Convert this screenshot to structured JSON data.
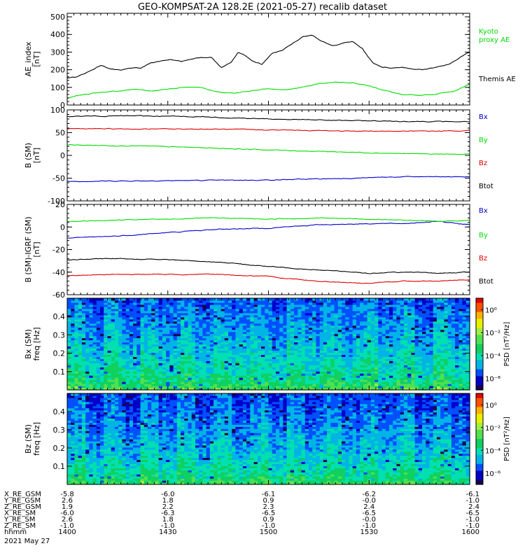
{
  "title": "GEO-KOMPSAT-2A 128.2E (2021-05-27) recalib dataset",
  "colors": {
    "black": "#000000",
    "green": "#00dd00",
    "red": "#dd0000",
    "blue": "#0000cc"
  },
  "chart_data": [
    {
      "type": "line",
      "panel": "ae",
      "ylabel": [
        "AE_index",
        "[nT]"
      ],
      "ylim": [
        0,
        520
      ],
      "yticks": [
        0,
        100,
        200,
        300,
        400,
        500
      ],
      "xlim": [
        0,
        120
      ],
      "series": [
        {
          "name": "Kyoto proxy AE",
          "name_lines": [
            "Kyoto",
            "proxy AE"
          ],
          "color": "#00dd00",
          "x": [
            0,
            5,
            10,
            15,
            20,
            25,
            30,
            35,
            40,
            45,
            50,
            55,
            60,
            65,
            70,
            75,
            80,
            85,
            90,
            95,
            100,
            105,
            110,
            115,
            120
          ],
          "values": [
            38,
            60,
            72,
            78,
            90,
            80,
            90,
            102,
            100,
            72,
            65,
            82,
            92,
            85,
            100,
            122,
            130,
            128,
            108,
            82,
            56,
            55,
            62,
            78,
            115
          ]
        },
        {
          "name": "Themis AE",
          "name_lines": [
            "Themis AE"
          ],
          "color": "#000000",
          "x": [
            0,
            3,
            7,
            10,
            13,
            16,
            19,
            22,
            25,
            28,
            31,
            34,
            37,
            40,
            43,
            46,
            49,
            51,
            53,
            55,
            58,
            61,
            64,
            67,
            70,
            73,
            76,
            79,
            82,
            85,
            88,
            91,
            94,
            97,
            100,
            103,
            106,
            110,
            114,
            117,
            120
          ],
          "values": [
            155,
            160,
            195,
            225,
            205,
            195,
            210,
            208,
            240,
            250,
            260,
            245,
            262,
            270,
            270,
            215,
            245,
            300,
            280,
            250,
            230,
            290,
            310,
            345,
            385,
            400,
            360,
            335,
            350,
            360,
            320,
            240,
            215,
            210,
            215,
            205,
            200,
            215,
            230,
            270,
            300
          ]
        }
      ]
    },
    {
      "type": "line",
      "panel": "b_sm",
      "ylabel": [
        "B (SM)",
        "[nT]"
      ],
      "ylim": [
        -100,
        100
      ],
      "yticks": [
        -100,
        -50,
        0,
        50,
        100
      ],
      "xlim": [
        0,
        120
      ],
      "series": [
        {
          "name": "Bx",
          "color": "#0000cc",
          "x": [
            0,
            20,
            40,
            60,
            80,
            100,
            120
          ],
          "values": [
            -57,
            -56,
            -55,
            -54,
            -51,
            -47,
            -47
          ]
        },
        {
          "name": "By",
          "color": "#00dd00",
          "x": [
            0,
            20,
            40,
            60,
            80,
            100,
            120
          ],
          "values": [
            23,
            21,
            17,
            12,
            8,
            4,
            2
          ]
        },
        {
          "name": "Bz",
          "color": "#dd0000",
          "x": [
            0,
            20,
            40,
            60,
            80,
            100,
            120
          ],
          "values": [
            59,
            58,
            58,
            56,
            54,
            53,
            54
          ]
        },
        {
          "name": "Btot",
          "color": "#000000",
          "x": [
            0,
            20,
            40,
            60,
            80,
            100,
            120
          ],
          "values": [
            86,
            87,
            85,
            80,
            77,
            75,
            74
          ]
        }
      ]
    },
    {
      "type": "line",
      "panel": "b_sm_igrf",
      "ylabel": [
        "B (SM)-IGRF (SM)",
        "[nT]"
      ],
      "ylim": [
        -60,
        20
      ],
      "yticks": [
        -60,
        -40,
        -20,
        0,
        20
      ],
      "xlim": [
        0,
        120
      ],
      "series": [
        {
          "name": "Bx",
          "color": "#0000cc",
          "x": [
            0,
            15,
            30,
            45,
            60,
            75,
            90,
            100,
            110,
            120
          ],
          "values": [
            -10,
            -8,
            -5,
            -2,
            -1,
            2,
            3,
            3,
            5,
            2
          ]
        },
        {
          "name": "By",
          "color": "#00dd00",
          "x": [
            0,
            15,
            30,
            45,
            60,
            75,
            90,
            100,
            110,
            120
          ],
          "values": [
            5,
            6,
            7,
            8,
            7,
            8,
            7,
            6,
            5,
            6
          ]
        },
        {
          "name": "Bz",
          "color": "#dd0000",
          "x": [
            0,
            15,
            30,
            45,
            60,
            75,
            90,
            100,
            110,
            120
          ],
          "values": [
            -43,
            -42,
            -42,
            -42,
            -44,
            -48,
            -50,
            -48,
            -48,
            -47
          ]
        },
        {
          "name": "Btot",
          "color": "#000000",
          "x": [
            0,
            15,
            30,
            45,
            60,
            75,
            90,
            100,
            110,
            120
          ],
          "values": [
            -29,
            -28,
            -29,
            -31,
            -35,
            -38,
            -41,
            -40,
            -41,
            -40
          ]
        }
      ]
    },
    {
      "type": "heatmap",
      "panel": "bx_spec",
      "ylabel": [
        "Bx (SM)",
        "freq [Hz]"
      ],
      "yticks": [
        0.1,
        0.2,
        0.3,
        0.4
      ],
      "ylim": [
        0,
        0.5
      ],
      "colorbar": {
        "label": "PSD [nT²/Hz]",
        "ticks": [
          "10⁰",
          "10⁻²",
          "10⁻⁴",
          "10⁻⁶"
        ],
        "tick_exponents": [
          0,
          -2,
          -4,
          -6
        ],
        "range_exponent": [
          -7,
          1
        ]
      }
    },
    {
      "type": "heatmap",
      "panel": "bz_spec",
      "ylabel": [
        "Bz (SM)",
        "freq [Hz]"
      ],
      "yticks": [
        0.1,
        0.2,
        0.3,
        0.4
      ],
      "ylim": [
        0,
        0.5
      ],
      "colorbar": {
        "label": "PSD [nT²/Hz]",
        "ticks": [
          "10⁰",
          "10⁻²",
          "10⁻⁴",
          "10⁻⁶"
        ],
        "tick_exponents": [
          0,
          -2,
          -4,
          -6
        ],
        "range_exponent": [
          -7,
          1
        ]
      }
    }
  ],
  "footer": {
    "rows": [
      {
        "label": "X_RE_GSM",
        "values": [
          "-5.8",
          "-6.0",
          "-6.1",
          "-6.2",
          "-6.1"
        ]
      },
      {
        "label": "Y_RE_GSM",
        "values": [
          "2.6",
          "1.8",
          "0.9",
          "-0.0",
          "-1.0"
        ]
      },
      {
        "label": "Z_RE_GSM",
        "values": [
          "1.9",
          "2.2",
          "2.3",
          "2.4",
          "2.4"
        ]
      },
      {
        "label": "X_RE_SM",
        "values": [
          "-6.0",
          "-6.3",
          "-6.5",
          "-6.5",
          "-6.5"
        ]
      },
      {
        "label": "Y_RE_SM",
        "values": [
          "2.6",
          "1.8",
          "0.9",
          "-0.0",
          "-1.0"
        ]
      },
      {
        "label": "Z_RE_SM",
        "values": [
          "-1.0",
          "-1.0",
          "-1.0",
          "-1.0",
          "-1.0"
        ]
      },
      {
        "label": "hhmm",
        "values": [
          "1400",
          "1430",
          "1500",
          "1530",
          "1600"
        ]
      }
    ],
    "date": "2021 May 27"
  }
}
